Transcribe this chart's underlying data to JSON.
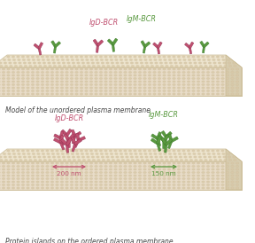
{
  "bg_color": "#ffffff",
  "mem_surface_color": "#ede4ce",
  "mem_body_color": "#e8dcc8",
  "mem_stripe_color": "#d8c8a8",
  "mem_edge_color": "#c8b890",
  "mem_side_color": "#d8cdb0",
  "igD_color": "#c05070",
  "igM_color": "#5a9940",
  "igD_dark": "#903050",
  "igM_dark": "#3a7a28",
  "igD_light": "#d07090",
  "igM_light": "#70b050",
  "label_igD": "IgD-BCR",
  "label_igM": "IgM-BCR",
  "caption_top": "Model of the unordered plasma membrane",
  "caption_bottom": "Protein islands on the ordered plasma membrane",
  "arrow_color_red": "#c05070",
  "arrow_color_green": "#5a9940",
  "label_200nm": "200 nm",
  "label_150nm": "150 nm",
  "text_color": "#444444",
  "fig_width": 2.88,
  "fig_height": 2.74,
  "dpi": 100
}
